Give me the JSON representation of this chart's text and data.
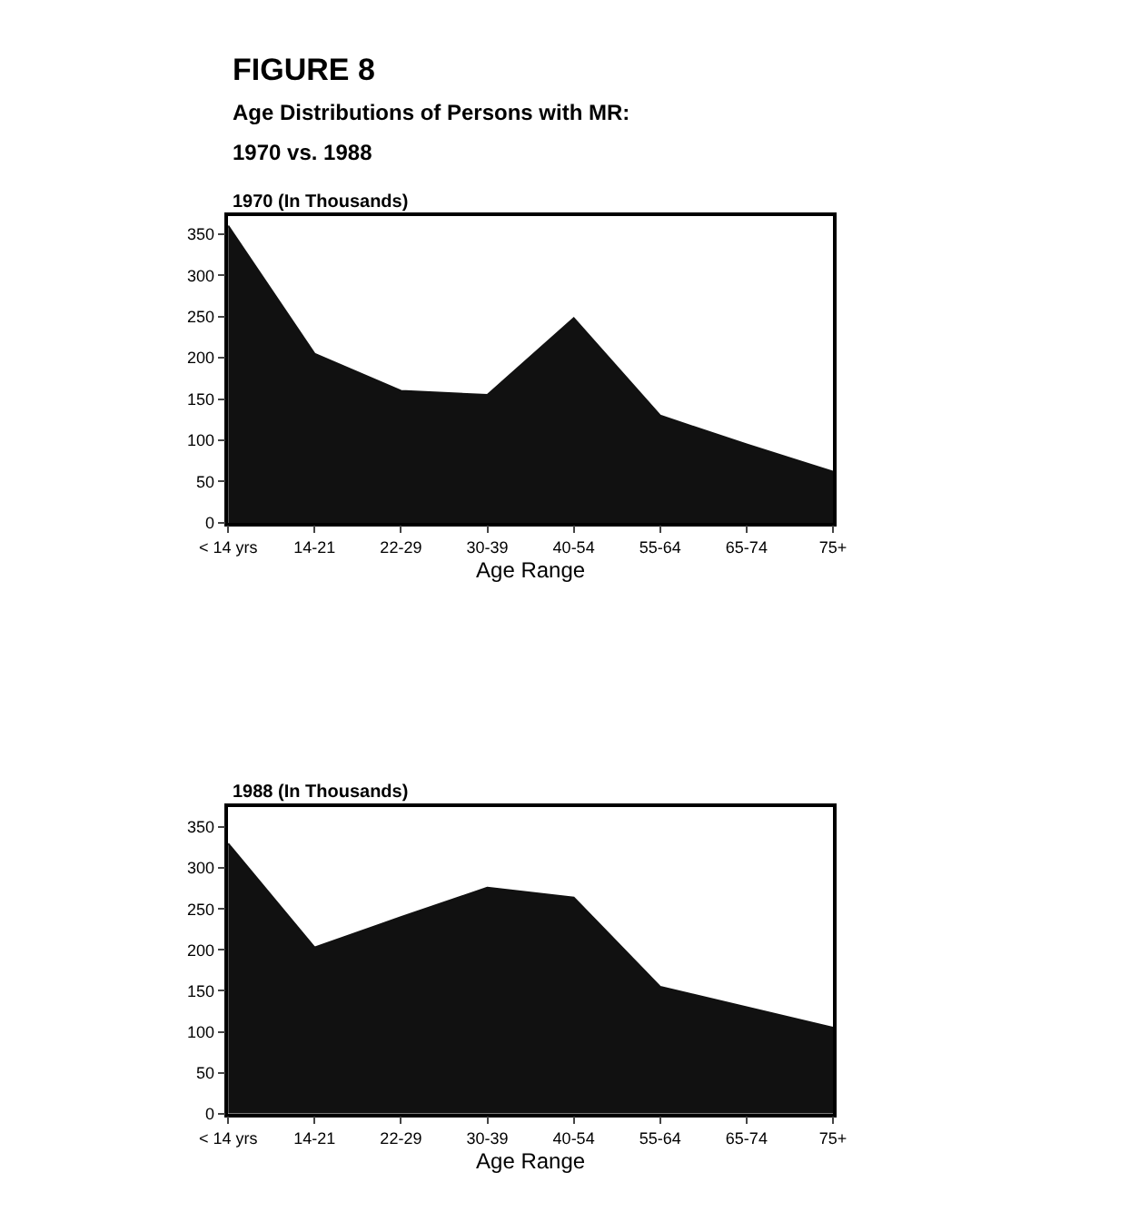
{
  "chart_data": [
    {
      "type": "area",
      "title": "FIGURE 8",
      "subtitle": "Age Distributions of Persons with MR:\n1970 vs. 1988",
      "ylabel": "1970 (In Thousands)",
      "xlabel": "Age Range",
      "categories": [
        "< 14 yrs",
        "14-21",
        "22-29",
        "30-39",
        "40-54",
        "55-64",
        "65-74",
        "75+"
      ],
      "series": [
        {
          "color": "#111111",
          "values": [
            360,
            205,
            160,
            155,
            248,
            130,
            95,
            62
          ]
        }
      ],
      "ylim": [
        0,
        372
      ],
      "yticks": [
        0,
        50,
        100,
        150,
        200,
        250,
        300,
        350
      ]
    },
    {
      "type": "area",
      "ylabel": "1988 (In Thousands)",
      "xlabel": "Age Range",
      "categories": [
        "< 14 yrs",
        "14-21",
        "22-29",
        "30-39",
        "40-54",
        "55-64",
        "65-74",
        "75+"
      ],
      "series": [
        {
          "color": "#111111",
          "values": [
            330,
            203,
            240,
            276,
            264,
            155,
            130,
            105
          ]
        }
      ],
      "ylim": [
        0,
        375
      ],
      "yticks": [
        0,
        50,
        100,
        150,
        200,
        250,
        300,
        350
      ]
    }
  ]
}
